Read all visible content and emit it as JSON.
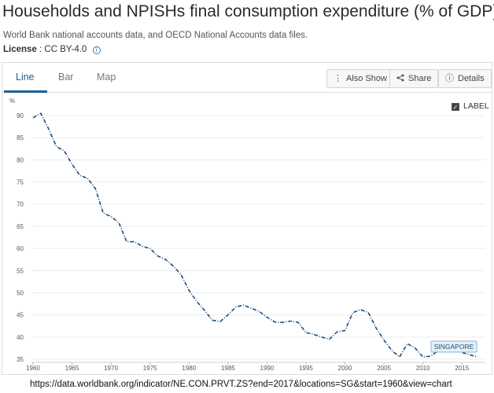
{
  "header": {
    "title": "Households and NPISHs final consumption expenditure (% of GDP)",
    "source": "World Bank national accounts data, and OECD National Accounts data files.",
    "license_label": "License",
    "license_value": ": CC BY-4.0",
    "info_icon": "info-icon"
  },
  "tabs": [
    {
      "label": "Line",
      "active": true
    },
    {
      "label": "Bar",
      "active": false
    },
    {
      "label": "Map",
      "active": false
    }
  ],
  "toolbar": {
    "also_show": "Also Show",
    "share": "Share",
    "details": "Details"
  },
  "label_toggle": "LABEL",
  "url": "https://data.worldbank.org/indicator/NE.CON.PRVT.ZS?end=2017&locations=SG&start=1960&view=chart",
  "colors": {
    "accent": "#1f5f94",
    "series": "#1d4e7e"
  },
  "chart_data": {
    "type": "line",
    "title": "",
    "ylabel": "%",
    "xlabel": "",
    "xlim": [
      1960,
      2017
    ],
    "ylim": [
      35,
      92
    ],
    "x_ticks": [
      1960,
      1965,
      1970,
      1975,
      1980,
      1985,
      1990,
      1995,
      2000,
      2005,
      2010,
      2015
    ],
    "y_ticks": [
      35,
      40,
      45,
      50,
      55,
      60,
      65,
      70,
      75,
      80,
      85,
      90
    ],
    "series": [
      {
        "name": "SINGAPORE",
        "x": [
          1960,
          1961,
          1962,
          1963,
          1964,
          1965,
          1966,
          1967,
          1968,
          1969,
          1970,
          1971,
          1972,
          1973,
          1974,
          1975,
          1976,
          1977,
          1978,
          1979,
          1980,
          1981,
          1982,
          1983,
          1984,
          1985,
          1986,
          1987,
          1988,
          1989,
          1990,
          1991,
          1992,
          1993,
          1994,
          1995,
          1996,
          1997,
          1998,
          1999,
          2000,
          2001,
          2002,
          2003,
          2004,
          2005,
          2006,
          2007,
          2008,
          2009,
          2010,
          2011,
          2012,
          2013,
          2014,
          2015,
          2016,
          2017
        ],
        "values": [
          89.5,
          90.5,
          87.0,
          83.0,
          82.0,
          79.0,
          76.5,
          75.8,
          73.5,
          68.0,
          67.2,
          65.8,
          61.5,
          61.5,
          60.5,
          60.0,
          58.3,
          57.5,
          56.0,
          54.0,
          50.5,
          48.0,
          46.0,
          43.8,
          43.5,
          45.0,
          46.8,
          47.2,
          46.5,
          45.8,
          44.5,
          43.4,
          43.3,
          43.6,
          43.3,
          41.0,
          40.6,
          40.0,
          39.5,
          41.2,
          41.5,
          45.5,
          46.2,
          45.5,
          42.0,
          39.3,
          37.0,
          35.5,
          38.5,
          37.5,
          35.5,
          35.7,
          37.0,
          37.2,
          37.5,
          36.5,
          36.0,
          35.5
        ]
      }
    ]
  }
}
